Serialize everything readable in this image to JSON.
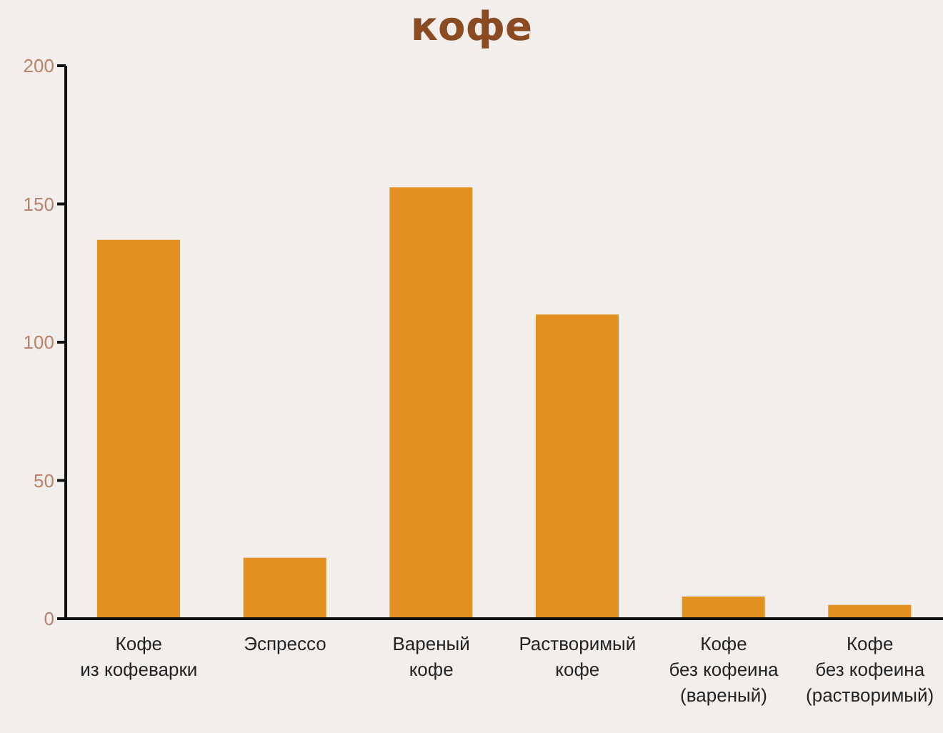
{
  "chart_data": {
    "type": "bar",
    "title": "кофе",
    "categories": [
      "Кофе\nиз кофеварки",
      "Эспрессо",
      "Вареный\nкофе",
      "Растворимый\nкофе",
      "Кофе\nбез кофеина\n(вареный)",
      "Кофе\nбез кофеина\n(растворимый)"
    ],
    "values": [
      137,
      22,
      156,
      110,
      8,
      5
    ],
    "color": "#e2901f",
    "ylim": [
      0,
      200
    ],
    "yticks": [
      0,
      50,
      100,
      150,
      200
    ],
    "grid": false
  }
}
